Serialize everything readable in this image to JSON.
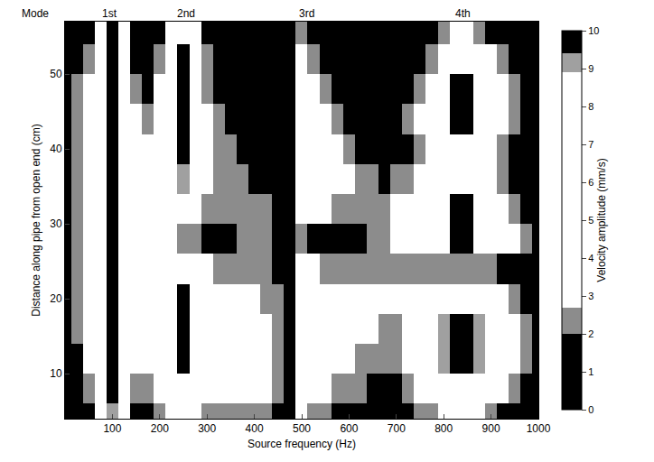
{
  "chart_data": {
    "type": "heatmap",
    "x_label": "Source frequency (Hz)",
    "y_label": "Distance along pipe from open end (cm)",
    "colorbar_label": "Velocity amplitude (mm/s)",
    "mode_heading": "Mode",
    "mode_labels": [
      {
        "text": "1st",
        "x": 95
      },
      {
        "text": "2nd",
        "x": 255
      },
      {
        "text": "3rd",
        "x": 510
      },
      {
        "text": "4th",
        "x": 840
      }
    ],
    "x": [
      0,
      25,
      50,
      75,
      100,
      125,
      150,
      175,
      200,
      225,
      250,
      275,
      300,
      325,
      350,
      375,
      400,
      425,
      450,
      475,
      500,
      525,
      550,
      575,
      600,
      625,
      650,
      675,
      700,
      725,
      750,
      775,
      800,
      825,
      850,
      875,
      900,
      925,
      950,
      975,
      1000
    ],
    "y": [
      4,
      8,
      12,
      16,
      20,
      24,
      28,
      32,
      36,
      40,
      44,
      48,
      52,
      56
    ],
    "values": [
      [
        1,
        1,
        1,
        4,
        9,
        3,
        1,
        1,
        2,
        3,
        4,
        3,
        2,
        2,
        2,
        2,
        2,
        2,
        1,
        1,
        3,
        2,
        2,
        1,
        1,
        1,
        1,
        1,
        1,
        1,
        2,
        2,
        3,
        3,
        3,
        3,
        2,
        1,
        1,
        1,
        1
      ],
      [
        1,
        1,
        2,
        5,
        10,
        4,
        2,
        2,
        3,
        5,
        7,
        5,
        3,
        3,
        3,
        3,
        3,
        3,
        2,
        1,
        4,
        3,
        3,
        2,
        2,
        2,
        1,
        1,
        1,
        2,
        3,
        4,
        6,
        7,
        7,
        6,
        4,
        3,
        2,
        1,
        1
      ],
      [
        1,
        1,
        3,
        6,
        10,
        5,
        4,
        3,
        4,
        7,
        10,
        6,
        4,
        3,
        3,
        3,
        3,
        3,
        2,
        1,
        6,
        5,
        4,
        3,
        3,
        2,
        2,
        2,
        2,
        3,
        4,
        6,
        9,
        10,
        10,
        9,
        6,
        4,
        3,
        2,
        1
      ],
      [
        1,
        2,
        3,
        6,
        10,
        6,
        4,
        4,
        5,
        8,
        10,
        7,
        4,
        3,
        3,
        3,
        3,
        3,
        2,
        1,
        8,
        6,
        4,
        3,
        3,
        3,
        3,
        2,
        2,
        3,
        5,
        7,
        9,
        10,
        10,
        9,
        6,
        4,
        3,
        2,
        1
      ],
      [
        1,
        2,
        4,
        7,
        10,
        6,
        4,
        4,
        5,
        8,
        10,
        7,
        4,
        3,
        3,
        3,
        3,
        2,
        2,
        1,
        8,
        6,
        4,
        3,
        3,
        3,
        3,
        3,
        3,
        3,
        4,
        5,
        7,
        8,
        8,
        6,
        4,
        3,
        2,
        1,
        1
      ],
      [
        1,
        2,
        4,
        7,
        10,
        6,
        4,
        4,
        4,
        6,
        8,
        5,
        3,
        2,
        2,
        2,
        2,
        2,
        1,
        1,
        4,
        3,
        2,
        2,
        2,
        2,
        2,
        2,
        2,
        2,
        2,
        2,
        2,
        2,
        2,
        2,
        2,
        1,
        1,
        1,
        1
      ],
      [
        1,
        2,
        4,
        7,
        10,
        6,
        4,
        3,
        3,
        3,
        2,
        2,
        1,
        1,
        1,
        2,
        2,
        2,
        1,
        1,
        2,
        1,
        1,
        1,
        1,
        1,
        2,
        2,
        3,
        3,
        4,
        6,
        8,
        10,
        10,
        8,
        5,
        4,
        3,
        2,
        1
      ],
      [
        1,
        2,
        4,
        7,
        10,
        6,
        4,
        3,
        3,
        4,
        5,
        3,
        2,
        2,
        2,
        2,
        2,
        2,
        1,
        1,
        5,
        4,
        3,
        2,
        2,
        2,
        2,
        2,
        3,
        3,
        4,
        6,
        8,
        10,
        10,
        8,
        5,
        3,
        2,
        1,
        1
      ],
      [
        1,
        2,
        4,
        7,
        10,
        5,
        4,
        3,
        4,
        7,
        9,
        6,
        3,
        2,
        2,
        2,
        1,
        1,
        1,
        1,
        8,
        6,
        4,
        3,
        3,
        2,
        2,
        1,
        2,
        2,
        3,
        4,
        6,
        6,
        6,
        5,
        3,
        2,
        1,
        1,
        1
      ],
      [
        1,
        2,
        4,
        7,
        10,
        5,
        3,
        3,
        4,
        8,
        10,
        7,
        4,
        2,
        2,
        1,
        1,
        1,
        1,
        1,
        8,
        6,
        4,
        3,
        2,
        1,
        1,
        1,
        1,
        1,
        2,
        3,
        4,
        5,
        5,
        4,
        3,
        2,
        1,
        1,
        1
      ],
      [
        1,
        2,
        3,
        6,
        10,
        5,
        3,
        2,
        3,
        7,
        10,
        7,
        3,
        2,
        1,
        1,
        1,
        1,
        1,
        1,
        7,
        5,
        3,
        2,
        1,
        1,
        1,
        1,
        1,
        2,
        3,
        5,
        8,
        10,
        10,
        8,
        5,
        3,
        2,
        1,
        1
      ],
      [
        1,
        2,
        3,
        6,
        10,
        4,
        2,
        1,
        3,
        7,
        10,
        6,
        2,
        1,
        1,
        1,
        1,
        1,
        1,
        1,
        5,
        3,
        2,
        1,
        1,
        1,
        1,
        1,
        1,
        1,
        2,
        4,
        7,
        10,
        10,
        7,
        4,
        3,
        2,
        1,
        1
      ],
      [
        1,
        1,
        2,
        5,
        10,
        4,
        1,
        1,
        2,
        6,
        10,
        5,
        2,
        1,
        1,
        1,
        1,
        1,
        1,
        1,
        3,
        2,
        1,
        1,
        1,
        1,
        1,
        1,
        1,
        1,
        1,
        2,
        5,
        7,
        7,
        5,
        3,
        2,
        1,
        1,
        1
      ],
      [
        1,
        1,
        1,
        4,
        10,
        3,
        1,
        1,
        1,
        3,
        6,
        3,
        1,
        1,
        1,
        1,
        1,
        1,
        1,
        1,
        2,
        1,
        1,
        1,
        1,
        1,
        1,
        1,
        1,
        1,
        1,
        1,
        2,
        3,
        3,
        2,
        1,
        1,
        1,
        1,
        1
      ]
    ],
    "xlim": [
      0,
      1000
    ],
    "xticks": [
      100,
      200,
      300,
      400,
      500,
      600,
      700,
      800,
      900,
      1000
    ],
    "ylim": [
      4,
      57
    ],
    "yticks": [
      10,
      20,
      30,
      40,
      50
    ],
    "colorbar_range": [
      0,
      10
    ],
    "colorbar_ticks": [
      0,
      1,
      2,
      3,
      4,
      5,
      6,
      7,
      8,
      9,
      10
    ]
  }
}
